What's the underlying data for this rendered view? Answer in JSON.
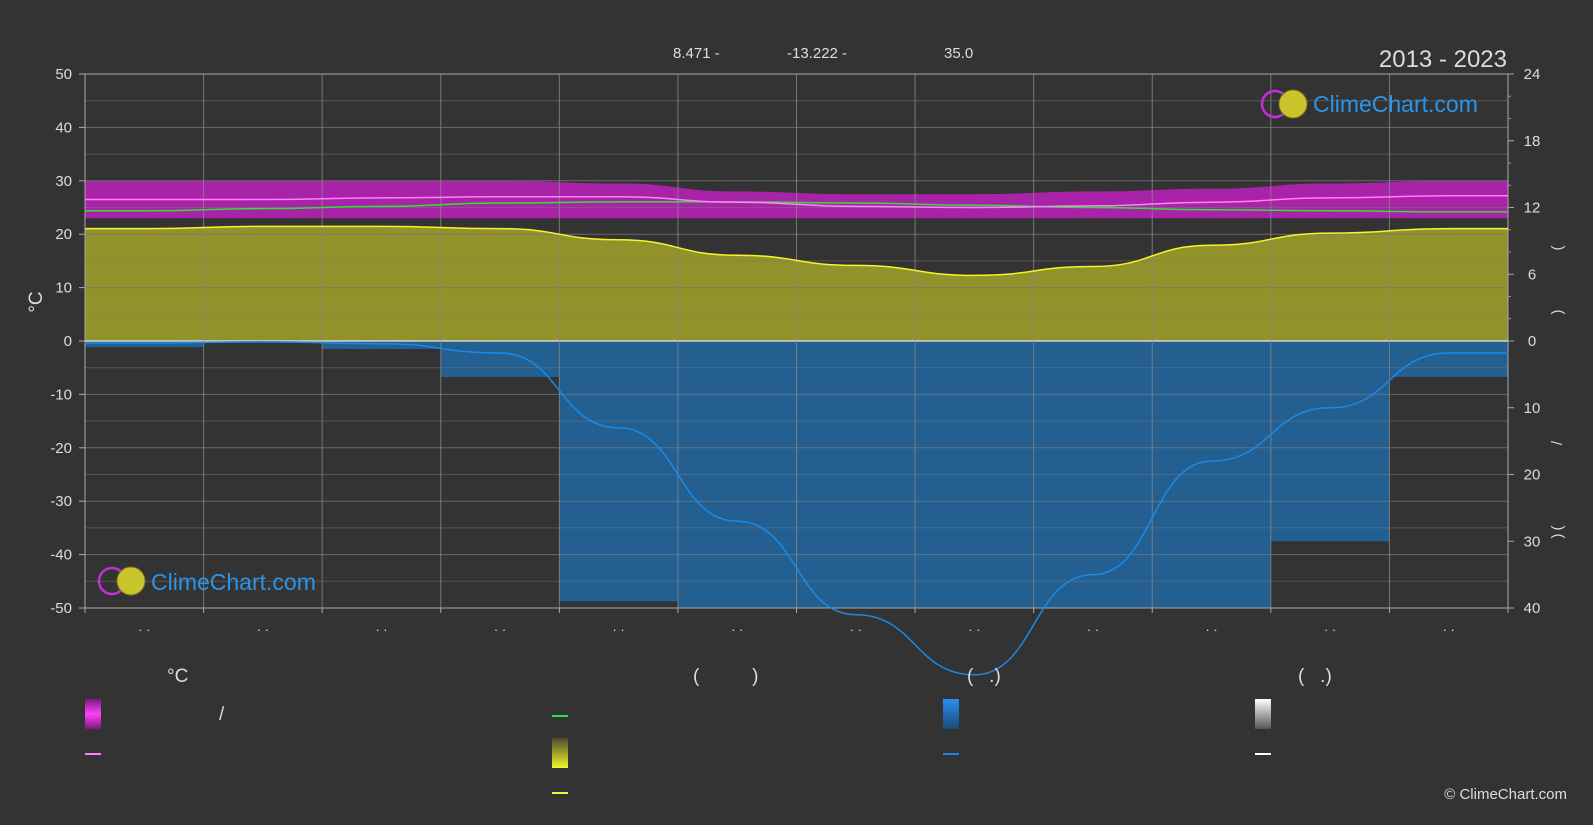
{
  "header": {
    "coordinates": [
      "8.471 -",
      "-13.222 -",
      "35.0"
    ],
    "year_range": "2013 - 2023"
  },
  "logo": {
    "text": "ClimeChart.com"
  },
  "copyright": "© ClimeChart.com",
  "legend": {
    "temperature_unit": "°C",
    "col_b_header": "(          )",
    "col_c_header": "(   .)",
    "col_d_header": "(   .)",
    "slash": "/"
  },
  "colors": {
    "background": "#333333",
    "temperature_band": "#d21fd2",
    "daily_mean_line": "#ff80ff",
    "daylight_line": "#2ee32e",
    "sunshine_fill": "#a3a32a",
    "sunshine_line": "#f5f52a",
    "precipitation_fill": "#1f6aa8",
    "precipitation_line": "#1a8ae6",
    "snow_line": "#ffffff"
  },
  "chart_data": {
    "type": "area",
    "title": "",
    "left_axis": {
      "label": "°C",
      "ticks": [
        50,
        40,
        30,
        20,
        10,
        0,
        -10,
        -20,
        -30,
        -40,
        -50
      ],
      "range": [
        -50,
        50
      ]
    },
    "right_axis_upper": {
      "ticks": [
        24,
        18,
        12,
        6,
        0
      ],
      "range": [
        0,
        24
      ]
    },
    "right_axis_lower": {
      "ticks": [
        10,
        20,
        30,
        40
      ],
      "range": [
        0,
        40
      ]
    },
    "months": 12,
    "month_tick_labels": [
      "· ·",
      "· ·",
      "· ·",
      "· ·",
      "· ·",
      "· ·",
      "· ·",
      "· ·",
      "· ·",
      "· ·",
      "· ·",
      "· ·"
    ],
    "grid": true,
    "series": [
      {
        "key": "temp_max",
        "axis": "left",
        "values": [
          30,
          30,
          30,
          30,
          29.5,
          28,
          27.5,
          27.5,
          28,
          28.5,
          29.5,
          30
        ]
      },
      {
        "key": "temp_min",
        "axis": "left",
        "values": [
          23,
          23,
          23.5,
          24,
          24,
          23.5,
          23,
          23,
          23,
          23,
          23,
          23
        ]
      },
      {
        "key": "daily_mean",
        "axis": "left",
        "values": [
          26.5,
          26.5,
          26.8,
          27,
          27,
          26,
          25.2,
          25,
          25.3,
          26,
          26.8,
          27.2
        ]
      },
      {
        "key": "daylight",
        "axis": "right_upper",
        "values": [
          11.7,
          11.9,
          12.1,
          12.4,
          12.5,
          12.5,
          12.4,
          12.2,
          12.0,
          11.8,
          11.7,
          11.6
        ]
      },
      {
        "key": "sunshine",
        "axis": "right_upper",
        "values": [
          10.1,
          10.3,
          10.3,
          10.1,
          9.1,
          7.7,
          6.8,
          5.9,
          6.7,
          8.6,
          9.7,
          10.1
        ]
      },
      {
        "key": "precipitation",
        "axis": "right_lower",
        "values": [
          0.3,
          0.1,
          0.4,
          1.8,
          13,
          27,
          41,
          50,
          35,
          18,
          10,
          1.8
        ]
      },
      {
        "key": "snow",
        "axis": "right_lower",
        "values": [
          0,
          0,
          0,
          0,
          0,
          0,
          0,
          0,
          0,
          0,
          0,
          0
        ]
      }
    ]
  }
}
